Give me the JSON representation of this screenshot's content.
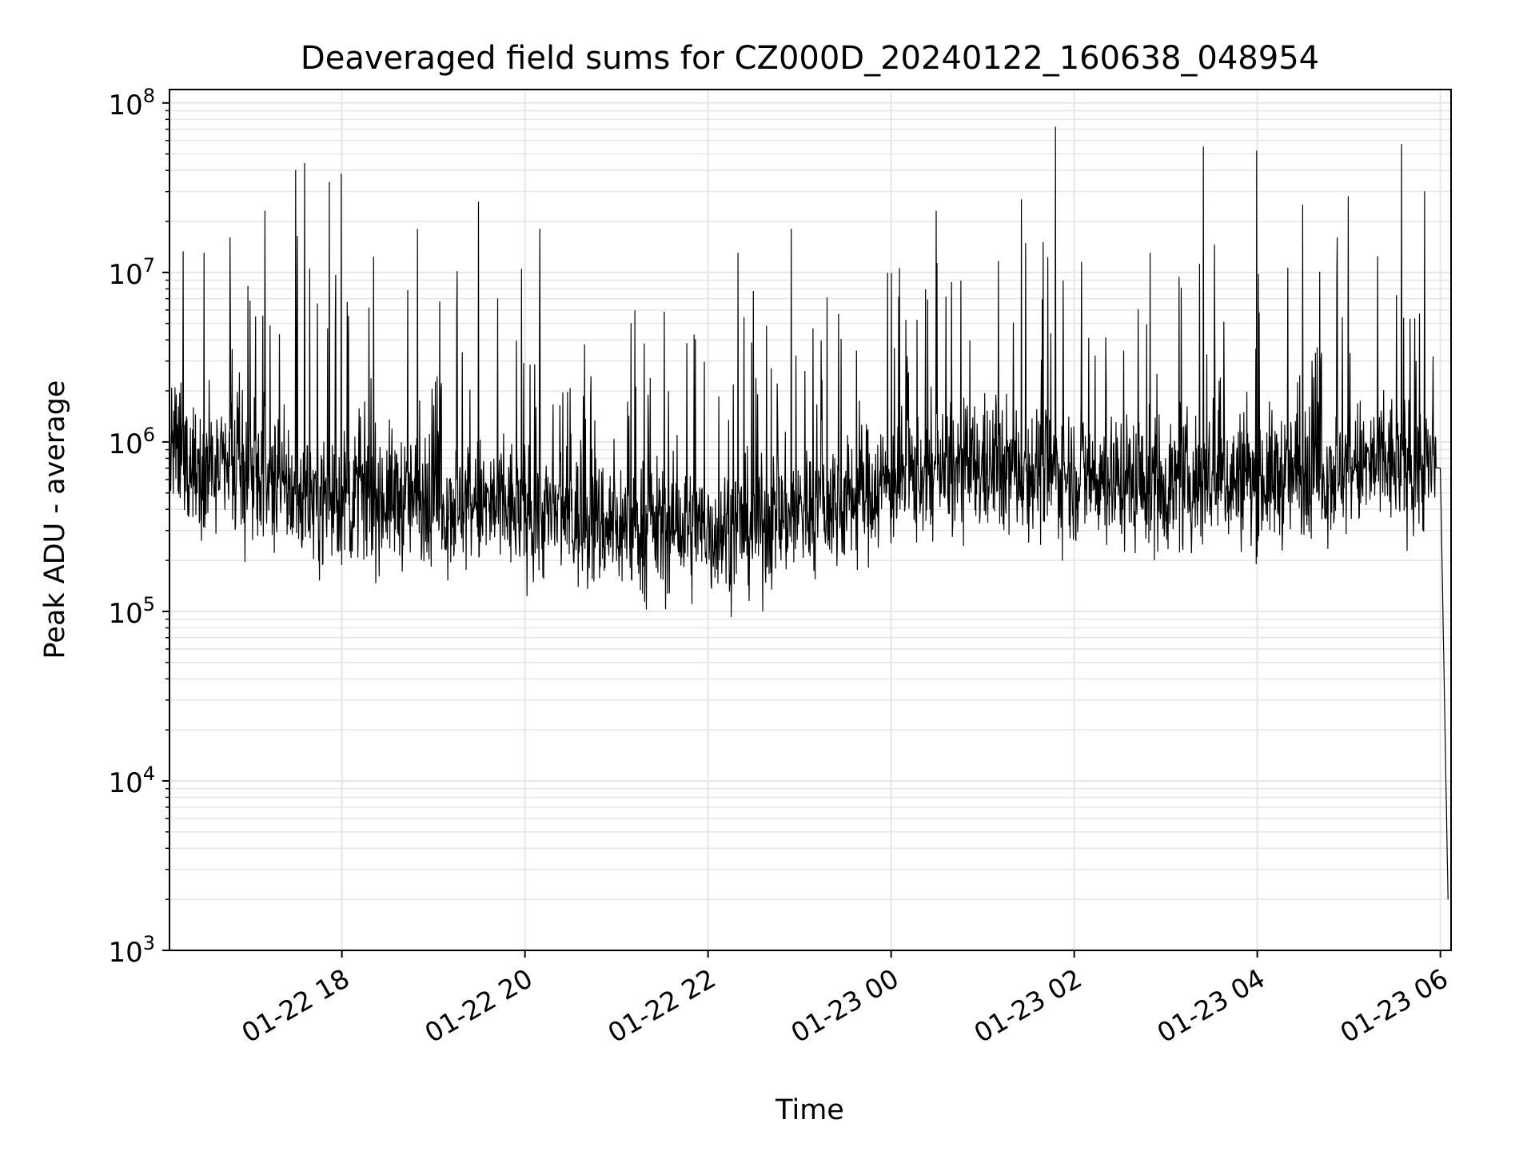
{
  "chart_data": {
    "type": "line",
    "title": "Deaveraged field sums for CZ000D_20240122_160638_048954",
    "xlabel": "Time",
    "ylabel": "Peak ADU - average",
    "y_scale": "log",
    "ylim": [
      1000,
      120000000
    ],
    "xlim": [
      "01-22 16:07",
      "01-23 06:07"
    ],
    "grid": true,
    "line_color": "#000000",
    "grid_color": "#e6e6e6",
    "x_ticks": [
      {
        "label": "01-22 18",
        "value": "01-22 18:00"
      },
      {
        "label": "01-22 20",
        "value": "01-22 20:00"
      },
      {
        "label": "01-22 22",
        "value": "01-22 22:00"
      },
      {
        "label": "01-23 00",
        "value": "01-23 00:00"
      },
      {
        "label": "01-23 02",
        "value": "01-23 02:00"
      },
      {
        "label": "01-23 04",
        "value": "01-23 04:00"
      },
      {
        "label": "01-23 06",
        "value": "01-23 06:00"
      }
    ],
    "y_ticks": [
      {
        "base": "10",
        "exp": "3",
        "value": 1000
      },
      {
        "base": "10",
        "exp": "4",
        "value": 10000
      },
      {
        "base": "10",
        "exp": "5",
        "value": 100000
      },
      {
        "base": "10",
        "exp": "6",
        "value": 1000000
      },
      {
        "base": "10",
        "exp": "7",
        "value": 10000000
      },
      {
        "base": "10",
        "exp": "8",
        "value": 100000000
      }
    ],
    "series": [
      {
        "x": [
          "01-22 16:07",
          "01-22 16:30",
          "01-22 17:00",
          "01-22 17:30",
          "01-22 18:00",
          "01-22 18:30",
          "01-22 19:00",
          "01-22 19:30",
          "01-22 20:00",
          "01-22 20:30",
          "01-22 21:00",
          "01-22 21:30",
          "01-22 22:00",
          "01-22 22:30",
          "01-22 23:00",
          "01-22 23:30",
          "01-23 00:00",
          "01-23 00:30",
          "01-23 01:00",
          "01-23 01:30",
          "01-23 02:00",
          "01-23 02:30",
          "01-23 03:00",
          "01-23 03:30",
          "01-23 04:00",
          "01-23 04:30",
          "01-23 05:00",
          "01-23 05:30",
          "01-23 06:00",
          "01-23 06:05"
        ],
        "y": [
          900000,
          700000,
          600000,
          500000,
          450000,
          480000,
          450000,
          420000,
          400000,
          350000,
          320000,
          320000,
          300000,
          320000,
          400000,
          450000,
          600000,
          650000,
          700000,
          700000,
          650000,
          600000,
          550000,
          600000,
          600000,
          650000,
          700000,
          750000,
          700000,
          2000
        ]
      }
    ],
    "spikes": [
      {
        "x": "01-22 16:30",
        "y": 13000000
      },
      {
        "x": "01-22 16:47",
        "y": 16000000
      },
      {
        "x": "01-22 17:10",
        "y": 23000000
      },
      {
        "x": "01-22 17:30",
        "y": 40000000
      },
      {
        "x": "01-22 17:36",
        "y": 44000000
      },
      {
        "x": "01-22 17:52",
        "y": 34000000
      },
      {
        "x": "01-22 18:00",
        "y": 38000000
      },
      {
        "x": "01-22 18:50",
        "y": 18000000
      },
      {
        "x": "01-22 19:30",
        "y": 26000000
      },
      {
        "x": "01-22 20:10",
        "y": 18000000
      },
      {
        "x": "01-22 21:10",
        "y": 5000000
      },
      {
        "x": "01-22 22:20",
        "y": 13000000
      },
      {
        "x": "01-22 22:55",
        "y": 18000000
      },
      {
        "x": "01-23 00:30",
        "y": 23000000
      },
      {
        "x": "01-23 01:40",
        "y": 15000000
      },
      {
        "x": "01-23 01:48",
        "y": 72000000
      },
      {
        "x": "01-23 02:50",
        "y": 13000000
      },
      {
        "x": "01-23 03:25",
        "y": 55000000
      },
      {
        "x": "01-23 04:00",
        "y": 52000000
      },
      {
        "x": "01-23 04:30",
        "y": 25000000
      },
      {
        "x": "01-23 05:00",
        "y": 28000000
      },
      {
        "x": "01-23 05:35",
        "y": 57000000
      },
      {
        "x": "01-23 05:50",
        "y": 30000000
      }
    ]
  }
}
